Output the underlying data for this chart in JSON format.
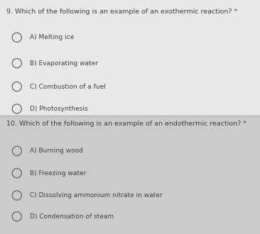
{
  "bg_top": "#e8e8e8",
  "bg_bottom": "#d0d0d0",
  "divider_color": "#b0b0b0",
  "q1": "9. Which of the following is an example of an exothermic reaction? *",
  "q1_options": [
    "A) Melting ice",
    "B) Evaporating water",
    "C) Combustion of a fuel",
    "D) Photosynthesis"
  ],
  "q2": "10. Which of the following is an example of an endothermic reaction? *",
  "q2_options": [
    "A) Burning wood",
    "B) Freezing water",
    "C) Dissolving ammonium nitrate in water",
    "D) Condensation of steam"
  ],
  "question_fontsize": 6.8,
  "option_fontsize": 6.5,
  "text_color": "#444444",
  "circle_color": "#666666",
  "figw": 3.66,
  "figh": 3.3,
  "dpi": 100
}
